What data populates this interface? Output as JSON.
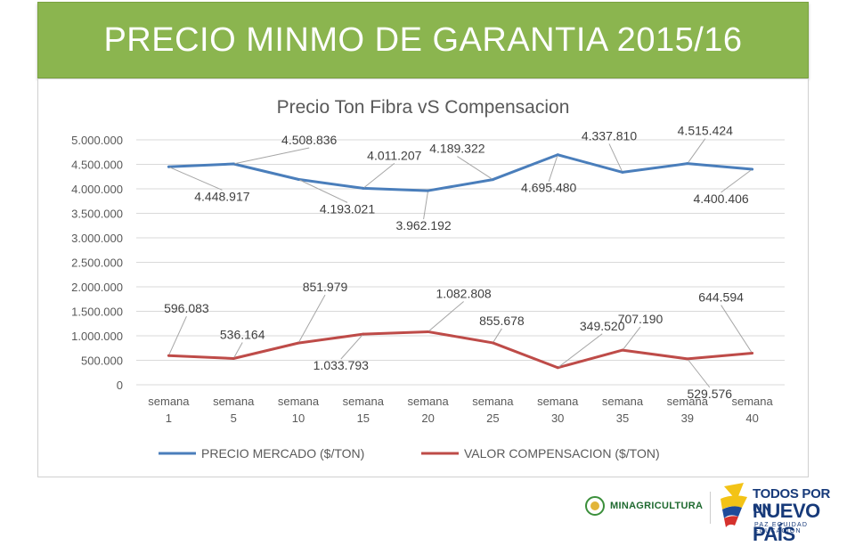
{
  "slide": {
    "title": "PRECIO MINMO DE GARANTIA 2015/16"
  },
  "colors": {
    "banner": "#8bb54f",
    "series_market": "#4a7ebb",
    "series_compensation": "#be4b48"
  },
  "chart_data": {
    "type": "line",
    "title": "Precio Ton Fibra vS Compensacion",
    "xlabel": "",
    "ylabel": "",
    "categories": [
      [
        "semana",
        "1"
      ],
      [
        "semana",
        "5"
      ],
      [
        "semana",
        "10"
      ],
      [
        "semana",
        "15"
      ],
      [
        "semana",
        "20"
      ],
      [
        "semana",
        "25"
      ],
      [
        "semana",
        "30"
      ],
      [
        "semana",
        "35"
      ],
      [
        "semana",
        "39"
      ],
      [
        "semana",
        "40"
      ]
    ],
    "ylim": [
      0,
      5000000
    ],
    "yticks": [
      "0",
      "500.000",
      "1.000.000",
      "1.500.000",
      "2.000.000",
      "2.500.000",
      "3.000.000",
      "3.500.000",
      "4.000.000",
      "4.500.000",
      "5.000.000"
    ],
    "grid": true,
    "legend_position": "bottom",
    "series": [
      {
        "name": "PRECIO MERCADO ($/TON)",
        "values": [
          4448917,
          4508836,
          4193021,
          4011207,
          3962192,
          4189322,
          4695480,
          4337810,
          4515424,
          4400406
        ],
        "labels": [
          "4.448.917",
          "4.508.836",
          "4.193.021",
          "4.011.207",
          "3.962.192",
          "4.189.322",
          "4.695.480",
          "4.337.810",
          "4.515.424",
          "4.400.406"
        ]
      },
      {
        "name": "VALOR COMPENSACION ($/TON)",
        "values": [
          596083,
          536164,
          851979,
          1033793,
          1082808,
          855678,
          349520,
          707190,
          529576,
          644594
        ],
        "labels": [
          "596.083",
          "536.164",
          "851.979",
          "1.033.793",
          "1.082.808",
          "855.678",
          "349.520",
          "707.190",
          "529.576",
          "644.594"
        ]
      }
    ]
  },
  "footer": {
    "logo_left": "MINAGRICULTURA",
    "logo_right_line1": "TODOS POR UN",
    "logo_right_line2": "NUEVO PAÍS",
    "logo_right_line3": "PAZ  EQUIDAD  EDUCACIÓN"
  }
}
